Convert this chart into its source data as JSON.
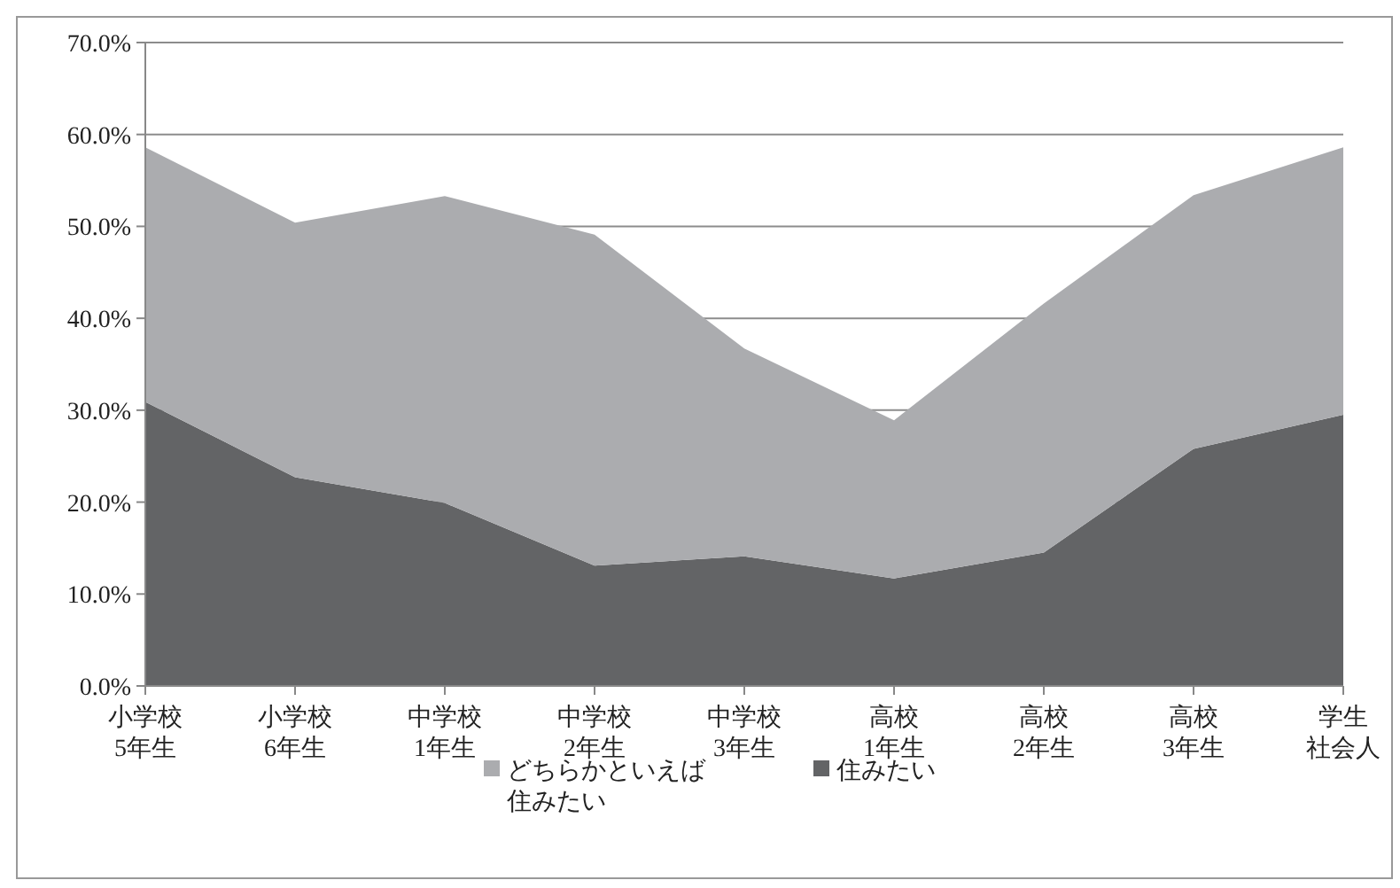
{
  "chart_data": {
    "type": "area",
    "stacked": true,
    "categories": [
      "小学校5年生",
      "小学校6年生",
      "中学校1年生",
      "中学校2年生",
      "中学校3年生",
      "高校1年生",
      "高校2年生",
      "高校3年生",
      "学生社会人"
    ],
    "series": [
      {
        "name": "住みたい",
        "color": "#636466",
        "values": [
          30.9,
          22.7,
          19.9,
          13.1,
          14.1,
          11.7,
          14.5,
          25.8,
          29.5
        ]
      },
      {
        "name": "どちらかといえば住みたい",
        "color": "#abacaf",
        "values": [
          27.7,
          27.7,
          33.4,
          36.0,
          22.6,
          17.2,
          27.1,
          27.6,
          29.1
        ]
      }
    ],
    "ylim": [
      0,
      70
    ],
    "yticks": [
      {
        "value": 0,
        "label": "0.0%"
      },
      {
        "value": 10,
        "label": "10.0%"
      },
      {
        "value": 20,
        "label": "20.0%"
      },
      {
        "value": 30,
        "label": "30.0%"
      },
      {
        "value": 40,
        "label": "40.0%"
      },
      {
        "value": 50,
        "label": "50.0%"
      },
      {
        "value": 60,
        "label": "60.0%"
      },
      {
        "value": 70,
        "label": "70.0%"
      }
    ],
    "grid": "y",
    "legend": "bottom"
  }
}
